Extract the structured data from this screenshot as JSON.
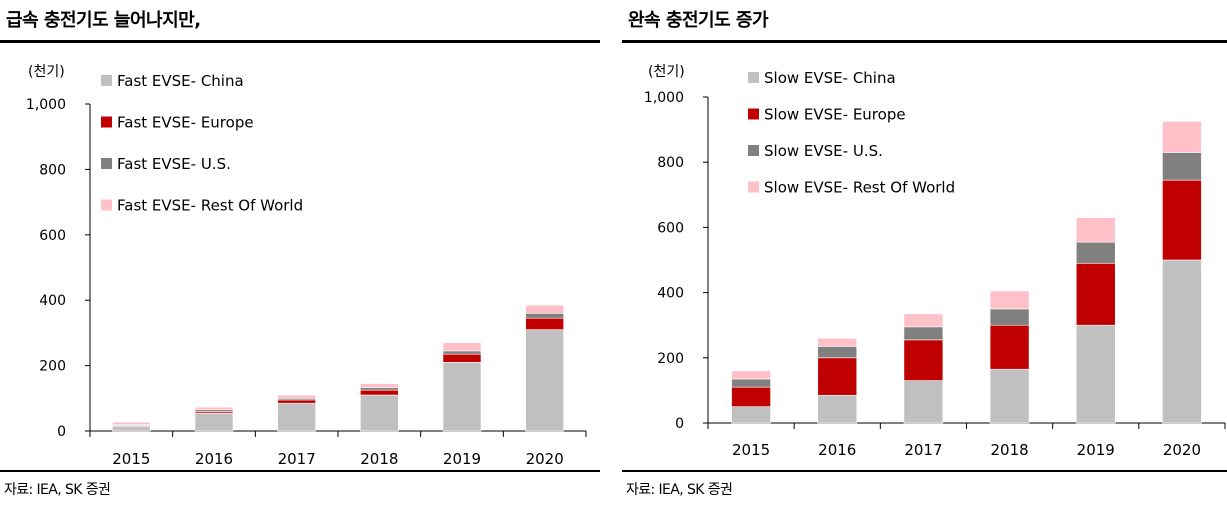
{
  "source": "자료: IEA, SK 증권",
  "charts": [
    {
      "id": "fast",
      "title": "급속 충전기도 늘어나지만,",
      "unit": "(천기)",
      "chart_data": {
        "type": "bar",
        "stacked": true,
        "categories": [
          "2015",
          "2016",
          "2017",
          "2018",
          "2019",
          "2020"
        ],
        "ylim": [
          0,
          1000
        ],
        "yticks": [
          "0",
          "200",
          "400",
          "600",
          "800",
          "1,000"
        ],
        "legend_position": "top-left",
        "grid": false,
        "series": [
          {
            "name": "Fast EVSE- China",
            "color": "#c0c0c0",
            "values": [
              15,
              55,
              85,
              110,
              210,
              310
            ]
          },
          {
            "name": "Fast EVSE- Europe",
            "color": "#c00000",
            "values": [
              2,
              5,
              10,
              15,
              25,
              35
            ]
          },
          {
            "name": "Fast EVSE- U.S.",
            "color": "#808080",
            "values": [
              3,
              5,
              5,
              8,
              10,
              15
            ]
          },
          {
            "name": "Fast EVSE- Rest Of World",
            "color": "#ffc0c8",
            "values": [
              7,
              8,
              10,
              12,
              25,
              25
            ]
          }
        ]
      }
    },
    {
      "id": "slow",
      "title": "완속 충전기도 증가",
      "unit": "(천기)",
      "chart_data": {
        "type": "bar",
        "stacked": true,
        "categories": [
          "2015",
          "2016",
          "2017",
          "2018",
          "2019",
          "2020"
        ],
        "ylim": [
          0,
          1000
        ],
        "yticks": [
          "0",
          "200",
          "400",
          "600",
          "800",
          "1,000"
        ],
        "legend_position": "top-left",
        "grid": false,
        "series": [
          {
            "name": "Slow EVSE- China",
            "color": "#c0c0c0",
            "values": [
              50,
              85,
              130,
              165,
              300,
              500
            ]
          },
          {
            "name": "Slow EVSE- Europe",
            "color": "#c00000",
            "values": [
              60,
              115,
              125,
              135,
              190,
              245
            ]
          },
          {
            "name": "Slow EVSE- U.S.",
            "color": "#808080",
            "values": [
              25,
              35,
              40,
              50,
              65,
              85
            ]
          },
          {
            "name": "Slow EVSE- Rest Of World",
            "color": "#ffc0c8",
            "values": [
              25,
              25,
              40,
              55,
              75,
              95
            ]
          }
        ]
      }
    }
  ]
}
